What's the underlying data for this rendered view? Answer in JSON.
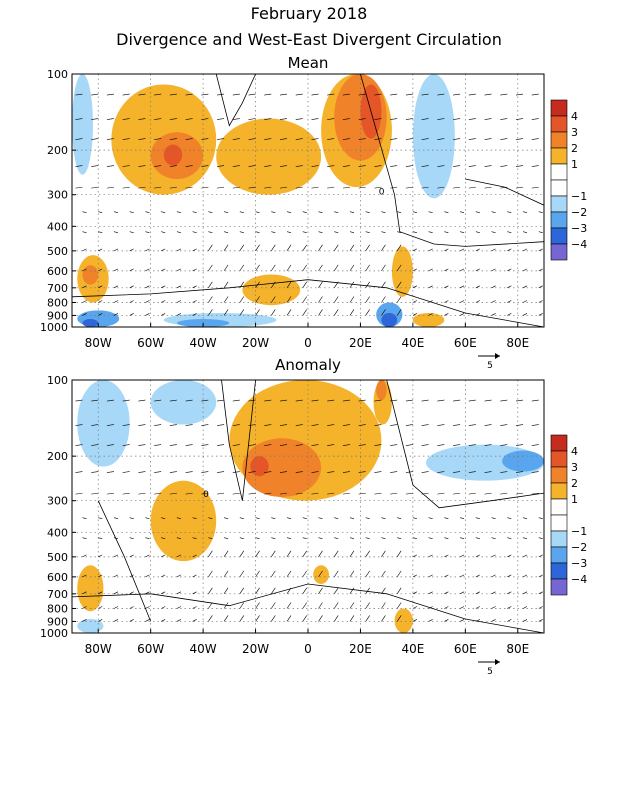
{
  "title": "February 2018",
  "subtitle": "Divergence and West-East Divergent Circulation",
  "colors": {
    "warm": [
      "#f5b22b",
      "#f0822a",
      "#e45527",
      "#c52c1f"
    ],
    "cool": [
      "#a8d8f8",
      "#5aa6ee",
      "#2c66d8",
      "#7467d3"
    ],
    "neutral": "#ffffff"
  },
  "colorbar": {
    "labels": [
      "4",
      "3",
      "2",
      "1",
      "−1",
      "−2",
      "−3",
      "−4"
    ]
  },
  "vector_scale_label": "5",
  "chart_data": [
    {
      "type": "heatmap",
      "title": "Mean",
      "x_ticks": [
        "80W",
        "60W",
        "40W",
        "20W",
        "0",
        "20E",
        "40E",
        "60E",
        "80E"
      ],
      "x_tick_values": [
        -80,
        -60,
        -40,
        -20,
        0,
        20,
        40,
        60,
        80
      ],
      "xlim": [
        -90,
        90
      ],
      "y_ticks": [
        "100",
        "200",
        "300",
        "400",
        "500",
        "600",
        "700",
        "800",
        "900",
        "1000"
      ],
      "y_tick_values": [
        100,
        200,
        300,
        400,
        500,
        600,
        700,
        800,
        900,
        1000
      ],
      "ylim": [
        1000,
        100
      ],
      "y_scale": "log-pressure",
      "contour_label": "0",
      "bands": [
        {
          "level": 1.5,
          "x_range": [
            -75,
            -35
          ],
          "p_range": [
            110,
            300
          ]
        },
        {
          "level": 2.5,
          "x_range": [
            -60,
            -40
          ],
          "p_range": [
            170,
            260
          ]
        },
        {
          "level": 3.5,
          "x_range": [
            -55,
            -48
          ],
          "p_range": [
            190,
            230
          ]
        },
        {
          "level": 1.5,
          "x_range": [
            -35,
            5
          ],
          "p_range": [
            150,
            300
          ]
        },
        {
          "level": 1.5,
          "x_range": [
            5,
            32
          ],
          "p_range": [
            100,
            280
          ]
        },
        {
          "level": 2.5,
          "x_range": [
            10,
            30
          ],
          "p_range": [
            100,
            220
          ]
        },
        {
          "level": 3.5,
          "x_range": [
            20,
            28
          ],
          "p_range": [
            110,
            180
          ]
        },
        {
          "level": 1.5,
          "x_range": [
            -88,
            -76
          ],
          "p_range": [
            520,
            800
          ]
        },
        {
          "level": 2.5,
          "x_range": [
            -86,
            -80
          ],
          "p_range": [
            570,
            680
          ]
        },
        {
          "level": 1.5,
          "x_range": [
            -25,
            -3
          ],
          "p_range": [
            620,
            820
          ]
        },
        {
          "level": 1.5,
          "x_range": [
            32,
            40
          ],
          "p_range": [
            480,
            760
          ]
        },
        {
          "level": 1.5,
          "x_range": [
            40,
            52
          ],
          "p_range": [
            880,
            1000
          ]
        },
        {
          "level": -1.5,
          "x_range": [
            -90,
            -82
          ],
          "p_range": [
            100,
            250
          ]
        },
        {
          "level": -1.5,
          "x_range": [
            40,
            56
          ],
          "p_range": [
            100,
            310
          ]
        },
        {
          "level": -2.5,
          "x_range": [
            -88,
            -72
          ],
          "p_range": [
            860,
            1000
          ]
        },
        {
          "level": -3.5,
          "x_range": [
            -86,
            -80
          ],
          "p_range": [
            930,
            1000
          ]
        },
        {
          "level": -1.5,
          "x_range": [
            -55,
            -12
          ],
          "p_range": [
            880,
            1000
          ]
        },
        {
          "level": -2.5,
          "x_range": [
            -50,
            -30
          ],
          "p_range": [
            930,
            1000
          ]
        },
        {
          "level": -2.5,
          "x_range": [
            26,
            36
          ],
          "p_range": [
            800,
            1000
          ]
        },
        {
          "level": -3.5,
          "x_range": [
            28,
            34
          ],
          "p_range": [
            880,
            1000
          ]
        }
      ]
    },
    {
      "type": "heatmap",
      "title": "Anomaly",
      "x_ticks": [
        "80W",
        "60W",
        "40W",
        "20W",
        "0",
        "20E",
        "40E",
        "60E",
        "80E"
      ],
      "x_tick_values": [
        -80,
        -60,
        -40,
        -20,
        0,
        20,
        40,
        60,
        80
      ],
      "xlim": [
        -90,
        90
      ],
      "y_ticks": [
        "100",
        "200",
        "300",
        "400",
        "500",
        "600",
        "700",
        "800",
        "900",
        "1000"
      ],
      "y_tick_values": [
        100,
        200,
        300,
        400,
        500,
        600,
        700,
        800,
        900,
        1000
      ],
      "ylim": [
        1000,
        100
      ],
      "y_scale": "log-pressure",
      "contour_label": "0",
      "bands": [
        {
          "level": 1.5,
          "x_range": [
            -30,
            28
          ],
          "p_range": [
            100,
            300
          ]
        },
        {
          "level": 2.5,
          "x_range": [
            -25,
            5
          ],
          "p_range": [
            170,
            290
          ]
        },
        {
          "level": 3.5,
          "x_range": [
            -22,
            -15
          ],
          "p_range": [
            200,
            240
          ]
        },
        {
          "level": 1.5,
          "x_range": [
            25,
            32
          ],
          "p_range": [
            100,
            150
          ]
        },
        {
          "level": 2.5,
          "x_range": [
            26,
            30
          ],
          "p_range": [
            100,
            120
          ]
        },
        {
          "level": 1.5,
          "x_range": [
            -60,
            -35
          ],
          "p_range": [
            250,
            520
          ]
        },
        {
          "level": 1.5,
          "x_range": [
            -88,
            -78
          ],
          "p_range": [
            540,
            820
          ]
        },
        {
          "level": 1.5,
          "x_range": [
            2,
            8
          ],
          "p_range": [
            540,
            640
          ]
        },
        {
          "level": 1.5,
          "x_range": [
            33,
            40
          ],
          "p_range": [
            800,
            1000
          ]
        },
        {
          "level": -1.5,
          "x_range": [
            -88,
            -68
          ],
          "p_range": [
            100,
            220
          ]
        },
        {
          "level": -1.5,
          "x_range": [
            -60,
            -35
          ],
          "p_range": [
            100,
            150
          ]
        },
        {
          "level": -1.5,
          "x_range": [
            45,
            90
          ],
          "p_range": [
            180,
            250
          ]
        },
        {
          "level": -2.5,
          "x_range": [
            74,
            90
          ],
          "p_range": [
            190,
            230
          ]
        },
        {
          "level": -1.5,
          "x_range": [
            -88,
            -78
          ],
          "p_range": [
            880,
            1000
          ]
        }
      ]
    }
  ]
}
